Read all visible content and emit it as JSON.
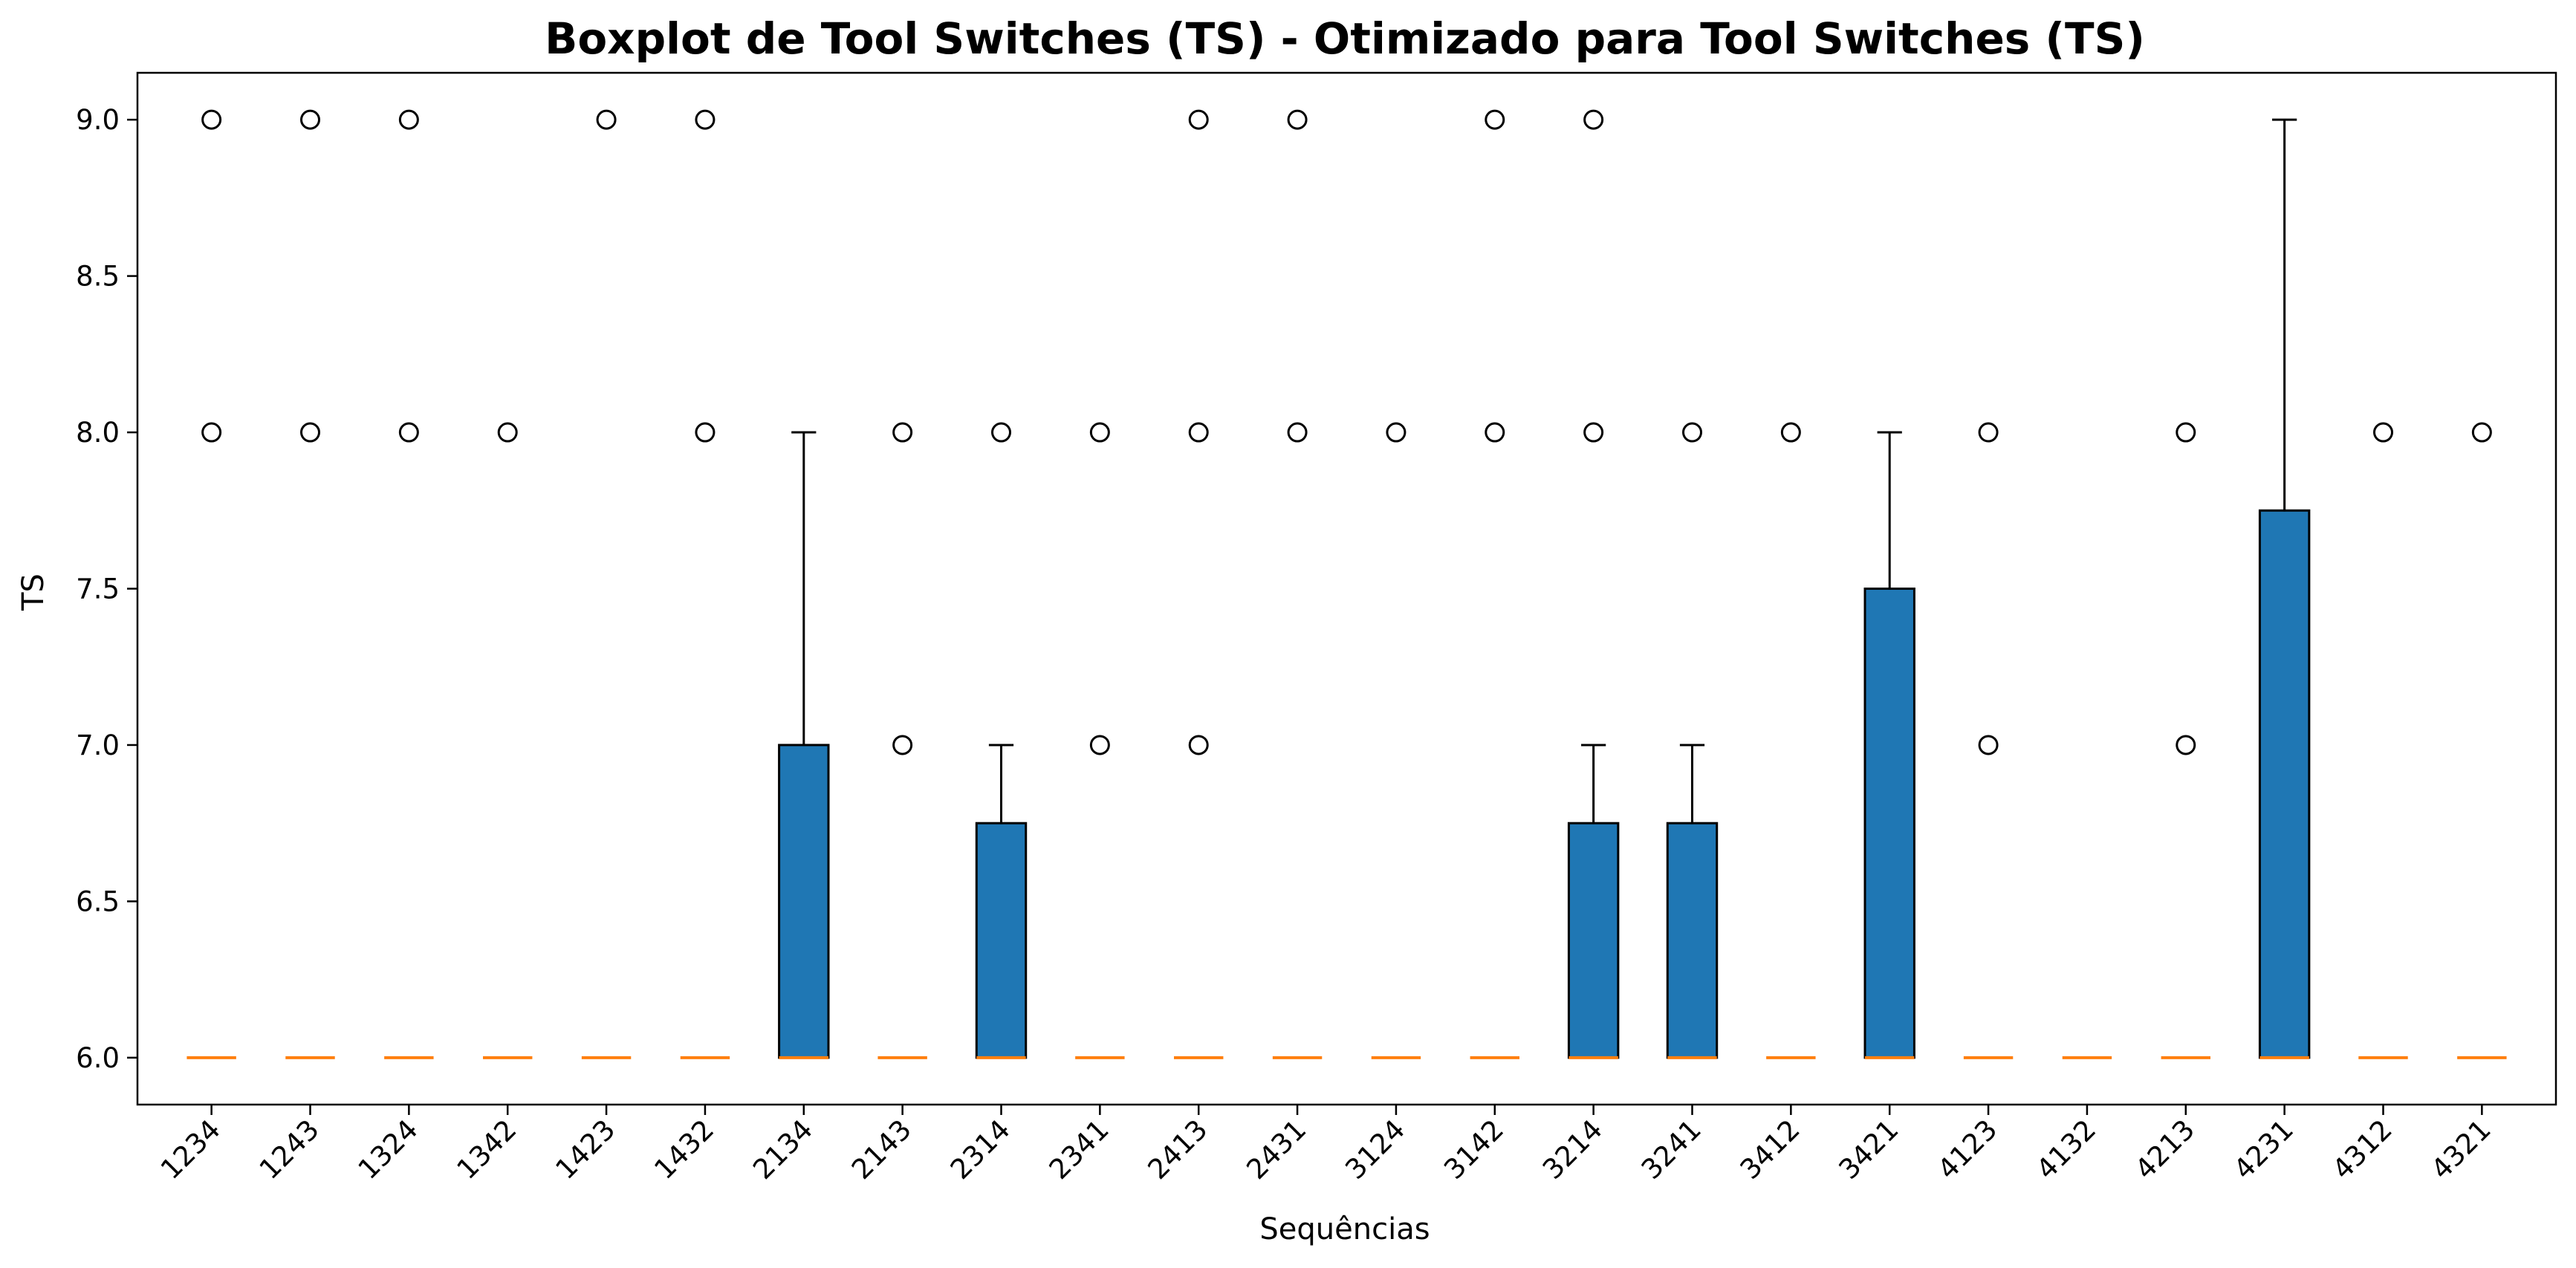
{
  "chart_data": {
    "type": "boxplot",
    "title": "Boxplot de Tool Switches (TS) - Otimizado para Tool Switches (TS)",
    "xlabel": "Sequências",
    "ylabel": "TS",
    "ylim": [
      5.85,
      9.15
    ],
    "yticks": [
      "6.0",
      "6.5",
      "7.0",
      "7.5",
      "8.0",
      "8.5",
      "9.0"
    ],
    "grid": false,
    "colors": {
      "box_fill": "#1f77b4",
      "median": "#ff7f0e",
      "edge": "#000000"
    },
    "categories": [
      "1234",
      "1243",
      "1324",
      "1342",
      "1423",
      "1432",
      "2134",
      "2143",
      "2314",
      "2341",
      "2413",
      "2431",
      "3124",
      "3142",
      "3214",
      "3241",
      "3412",
      "3421",
      "4123",
      "4132",
      "4213",
      "4231",
      "4312",
      "4321"
    ],
    "boxes": [
      {
        "q1": 6,
        "median": 6,
        "q3": 6,
        "whislo": 6,
        "whishi": 6,
        "fliers": [
          8,
          9
        ]
      },
      {
        "q1": 6,
        "median": 6,
        "q3": 6,
        "whislo": 6,
        "whishi": 6,
        "fliers": [
          8,
          9
        ]
      },
      {
        "q1": 6,
        "median": 6,
        "q3": 6,
        "whislo": 6,
        "whishi": 6,
        "fliers": [
          8,
          9
        ]
      },
      {
        "q1": 6,
        "median": 6,
        "q3": 6,
        "whislo": 6,
        "whishi": 6,
        "fliers": [
          8
        ]
      },
      {
        "q1": 6,
        "median": 6,
        "q3": 6,
        "whislo": 6,
        "whishi": 6,
        "fliers": [
          9
        ]
      },
      {
        "q1": 6,
        "median": 6,
        "q3": 6,
        "whislo": 6,
        "whishi": 6,
        "fliers": [
          8,
          9
        ]
      },
      {
        "q1": 6,
        "median": 6,
        "q3": 7,
        "whislo": 6,
        "whishi": 8,
        "fliers": []
      },
      {
        "q1": 6,
        "median": 6,
        "q3": 6,
        "whislo": 6,
        "whishi": 6,
        "fliers": [
          7,
          8
        ]
      },
      {
        "q1": 6,
        "median": 6,
        "q3": 6.75,
        "whislo": 6,
        "whishi": 7,
        "fliers": [
          8
        ]
      },
      {
        "q1": 6,
        "median": 6,
        "q3": 6,
        "whislo": 6,
        "whishi": 6,
        "fliers": [
          7,
          8
        ]
      },
      {
        "q1": 6,
        "median": 6,
        "q3": 6,
        "whislo": 6,
        "whishi": 6,
        "fliers": [
          7,
          8,
          9
        ]
      },
      {
        "q1": 6,
        "median": 6,
        "q3": 6,
        "whislo": 6,
        "whishi": 6,
        "fliers": [
          8,
          9
        ]
      },
      {
        "q1": 6,
        "median": 6,
        "q3": 6,
        "whislo": 6,
        "whishi": 6,
        "fliers": [
          8
        ]
      },
      {
        "q1": 6,
        "median": 6,
        "q3": 6,
        "whislo": 6,
        "whishi": 6,
        "fliers": [
          8,
          9
        ]
      },
      {
        "q1": 6,
        "median": 6,
        "q3": 6.75,
        "whislo": 6,
        "whishi": 7,
        "fliers": [
          8,
          9
        ]
      },
      {
        "q1": 6,
        "median": 6,
        "q3": 6.75,
        "whislo": 6,
        "whishi": 7,
        "fliers": [
          8
        ]
      },
      {
        "q1": 6,
        "median": 6,
        "q3": 6,
        "whislo": 6,
        "whishi": 6,
        "fliers": [
          8
        ]
      },
      {
        "q1": 6,
        "median": 6,
        "q3": 7.5,
        "whislo": 6,
        "whishi": 8,
        "fliers": []
      },
      {
        "q1": 6,
        "median": 6,
        "q3": 6,
        "whislo": 6,
        "whishi": 6,
        "fliers": [
          7,
          8
        ]
      },
      {
        "q1": 6,
        "median": 6,
        "q3": 6,
        "whislo": 6,
        "whishi": 6,
        "fliers": []
      },
      {
        "q1": 6,
        "median": 6,
        "q3": 6,
        "whislo": 6,
        "whishi": 6,
        "fliers": [
          7,
          8
        ]
      },
      {
        "q1": 6,
        "median": 6,
        "q3": 7.75,
        "whislo": 6,
        "whishi": 9,
        "fliers": []
      },
      {
        "q1": 6,
        "median": 6,
        "q3": 6,
        "whislo": 6,
        "whishi": 6,
        "fliers": [
          8
        ]
      },
      {
        "q1": 6,
        "median": 6,
        "q3": 6,
        "whislo": 6,
        "whishi": 6,
        "fliers": [
          8
        ]
      }
    ]
  }
}
